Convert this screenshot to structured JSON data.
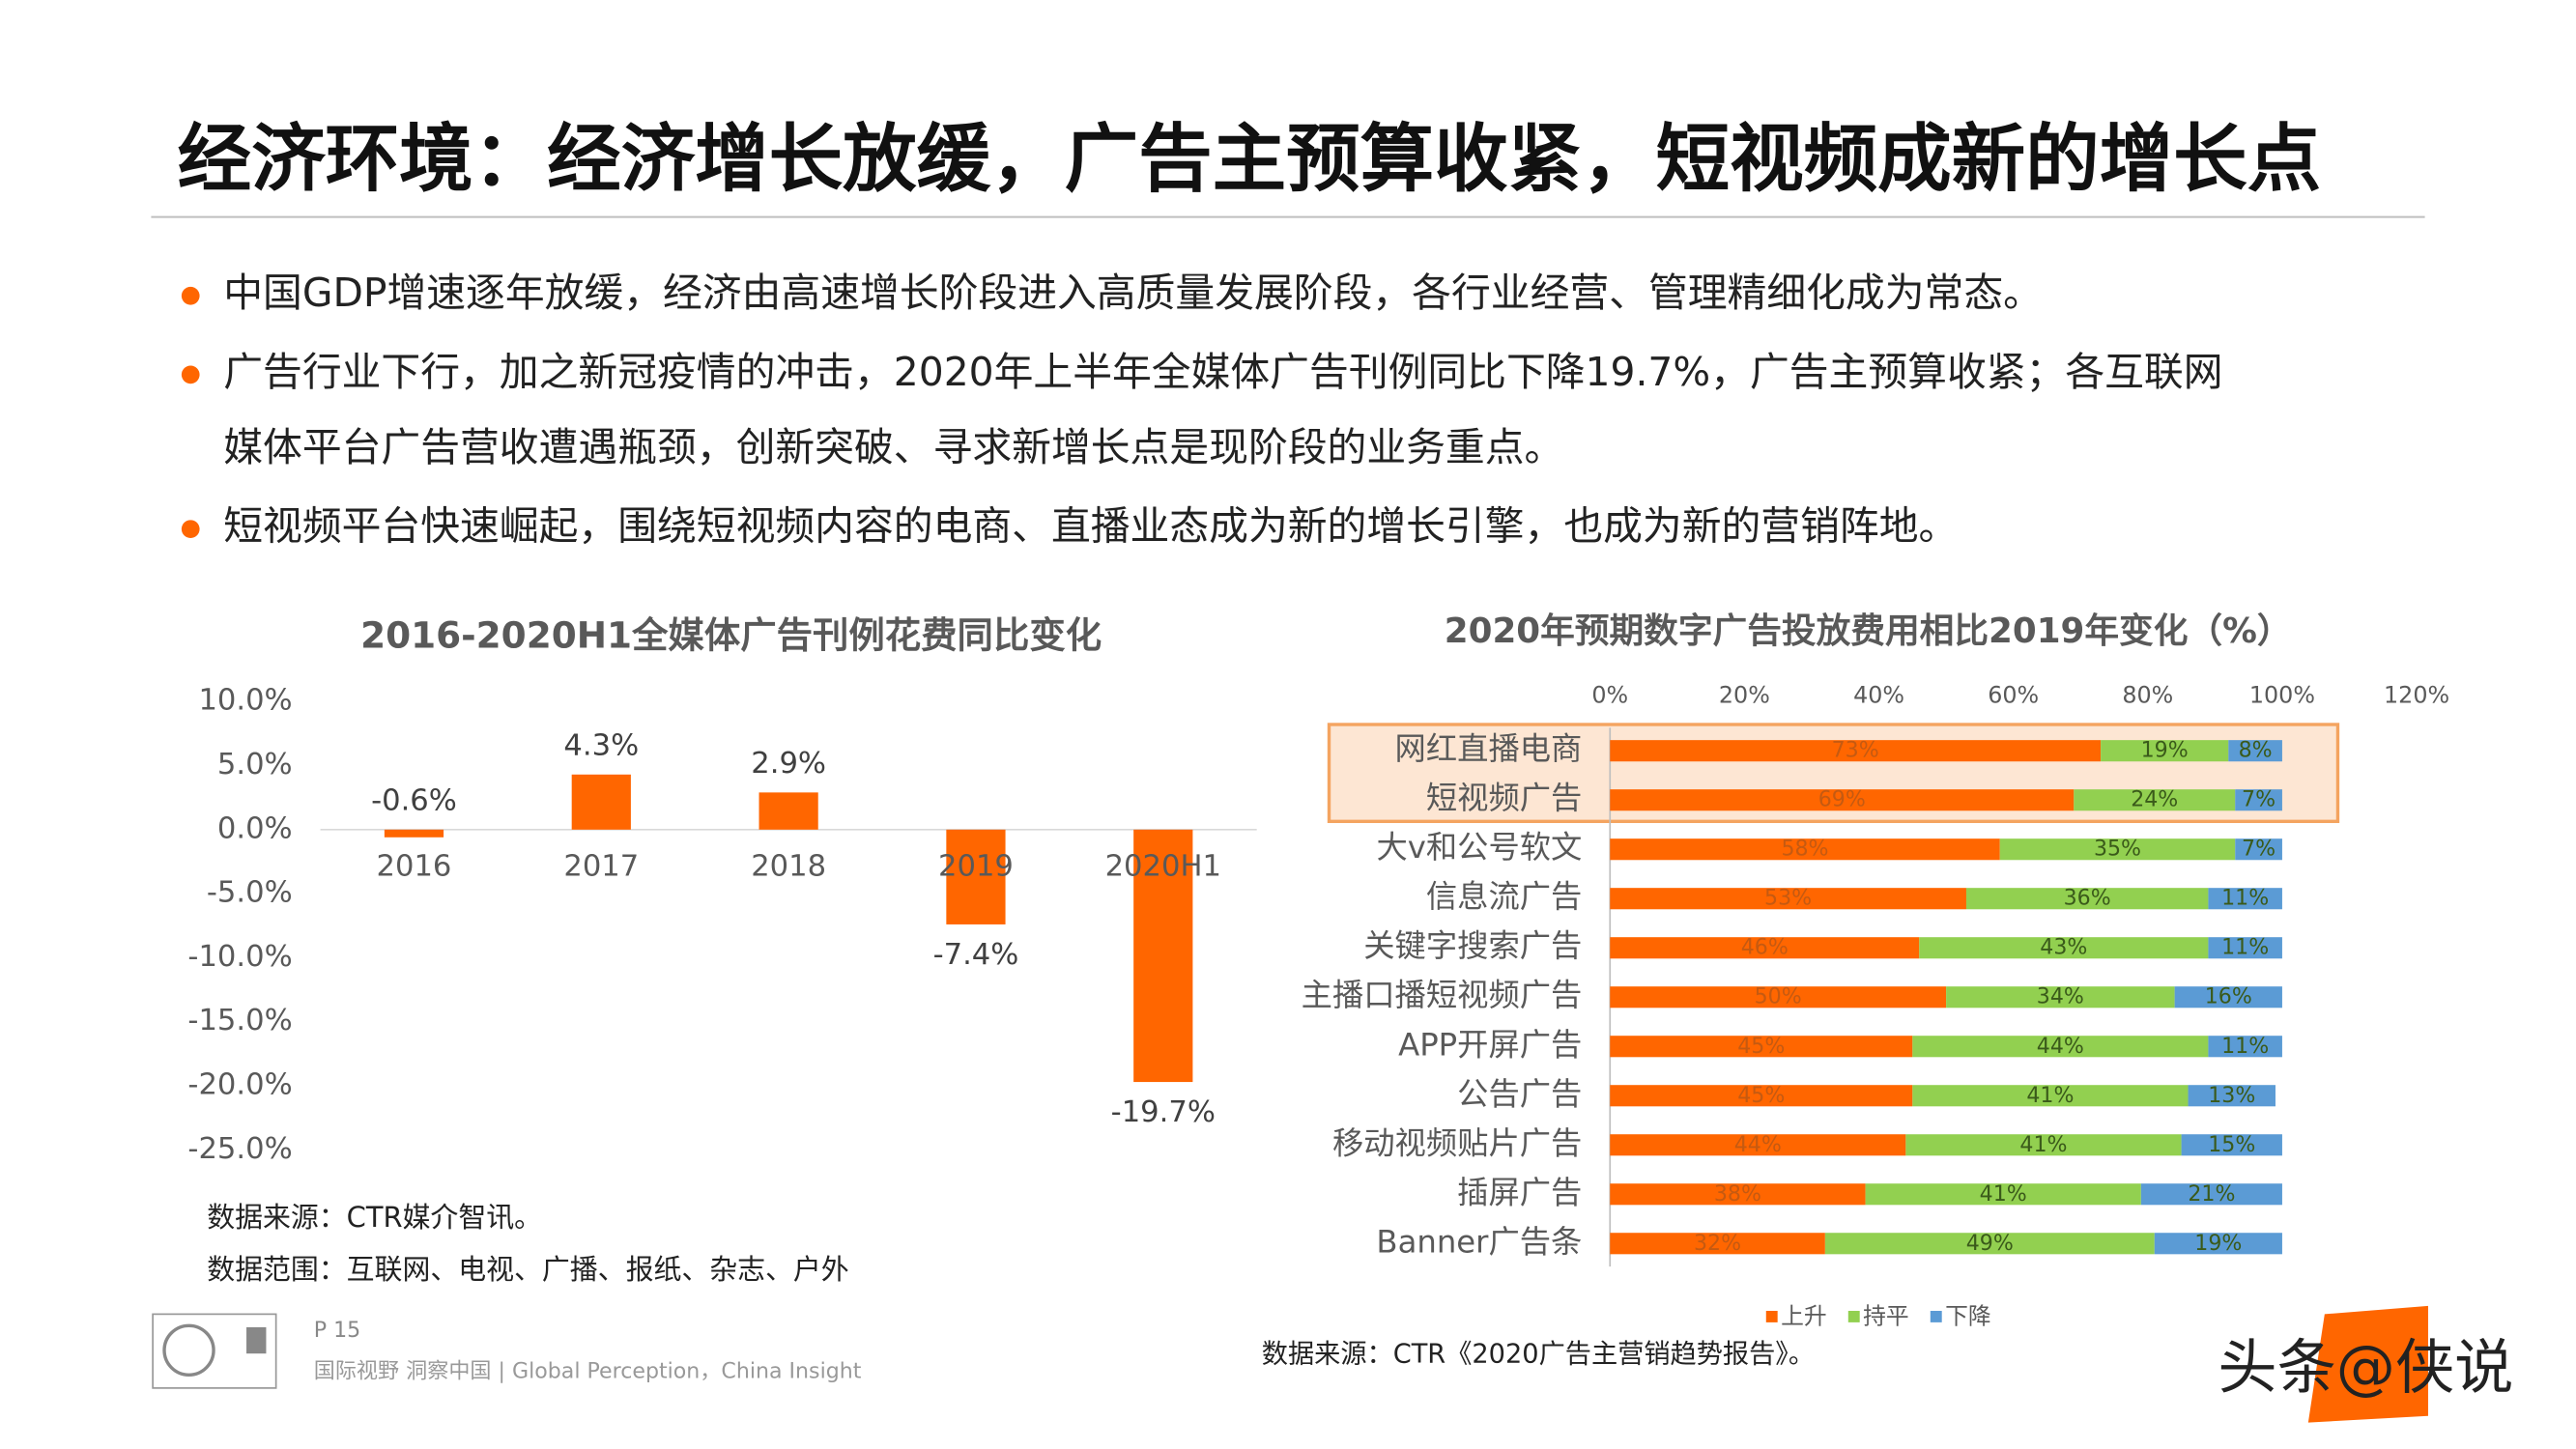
{
  "header": {
    "title": "经济环境：经济增长放缓，广告主预算收紧，短视频成新的增长点"
  },
  "bullets": [
    [
      "中国GDP增速逐年放缓，经济由高速增长阶段进入高质量发展阶段，各行业经营、管理精细化成为常态。"
    ],
    [
      "广告行业下行，加之新冠疫情的冲击，2020年上半年全媒体广告刊例同比下降19.7%，广告主预算收紧；各互联网",
      "媒体平台广告营收遭遇瓶颈，创新突破、寻求新增长点是现阶段的业务重点。"
    ],
    [
      "短视频平台快速崛起，围绕短视频内容的电商、直播业态成为新的增长引擎，也成为新的营销阵地。"
    ]
  ],
  "chart_data": [
    {
      "type": "bar",
      "title": "2016-2020H1全媒体广告刊例花费同比变化",
      "categories": [
        "2016",
        "2017",
        "2018",
        "2019",
        "2020H1"
      ],
      "values": [
        -0.6,
        4.3,
        2.9,
        -7.4,
        -19.7
      ],
      "value_labels": [
        "-0.6%",
        "4.3%",
        "2.9%",
        "-7.4%",
        "-19.7%"
      ],
      "color": "#ff6600",
      "ylim": [
        -25,
        10
      ],
      "yticks": [
        {
          "value": 10,
          "label": "10.0%"
        },
        {
          "value": 5,
          "label": "5.0%"
        },
        {
          "value": 0,
          "label": "0.0%"
        },
        {
          "value": -5,
          "label": "-5.0%"
        },
        {
          "value": -10,
          "label": "-10.0%"
        },
        {
          "value": -15,
          "label": "-15.0%"
        },
        {
          "value": -20,
          "label": "-20.0%"
        },
        {
          "value": -25,
          "label": "-25.0%"
        }
      ],
      "notes": [
        "数据来源：CTR媒介智讯。",
        "数据范围：互联网、电视、广播、报纸、杂志、户外"
      ]
    },
    {
      "type": "stacked_bar_h",
      "title": "2020年预期数字广告投放费用相比2019年变化（%）",
      "categories": [
        "网红直播电商",
        "短视频广告",
        "大v和公号软文",
        "信息流广告",
        "关键字搜索广告",
        "主播口播短视频广告",
        "APP开屏广告",
        "公告广告",
        "移动视频贴片广告",
        "插屏广告",
        "Banner广告条"
      ],
      "series": [
        {
          "name": "上升",
          "color": "#ff6600",
          "values": [
            73,
            69,
            58,
            53,
            46,
            50,
            45,
            45,
            44,
            38,
            32
          ],
          "value_labels": [
            "73%",
            "69%",
            "58%",
            "53%",
            "46%",
            "50%",
            "45%",
            "45%",
            "44%",
            "38%",
            "32%"
          ]
        },
        {
          "name": "持平",
          "color": "#92d050",
          "values": [
            19,
            24,
            35,
            36,
            43,
            34,
            44,
            41,
            41,
            41,
            49
          ],
          "value_labels": [
            "19%",
            "24%",
            "35%",
            "36%",
            "43%",
            "34%",
            "44%",
            "41%",
            "41%",
            "41%",
            "49%"
          ]
        },
        {
          "name": "下降",
          "color": "#5b9bd5",
          "values": [
            8,
            7,
            7,
            11,
            11,
            16,
            11,
            13,
            15,
            21,
            19
          ],
          "value_labels": [
            "8%",
            "7%",
            "7%",
            "11%",
            "11%",
            "16%",
            "11%",
            "13%",
            "15%",
            "21%",
            "19%"
          ]
        }
      ],
      "xlim": [
        0,
        120
      ],
      "xticks": [
        {
          "value": 0,
          "label": "0%"
        },
        {
          "value": 20,
          "label": "20%"
        },
        {
          "value": 40,
          "label": "40%"
        },
        {
          "value": 60,
          "label": "60%"
        },
        {
          "value": 80,
          "label": "80%"
        },
        {
          "value": 100,
          "label": "100%"
        },
        {
          "value": 120,
          "label": "120%"
        }
      ],
      "source": "数据来源：CTR《2020广告主营销趋势报告》。"
    }
  ],
  "footer": {
    "page": "P 15",
    "slogan": "国际视野  洞察中国 |  Global Perception，China Insight",
    "watermark": "头条@侠说"
  }
}
